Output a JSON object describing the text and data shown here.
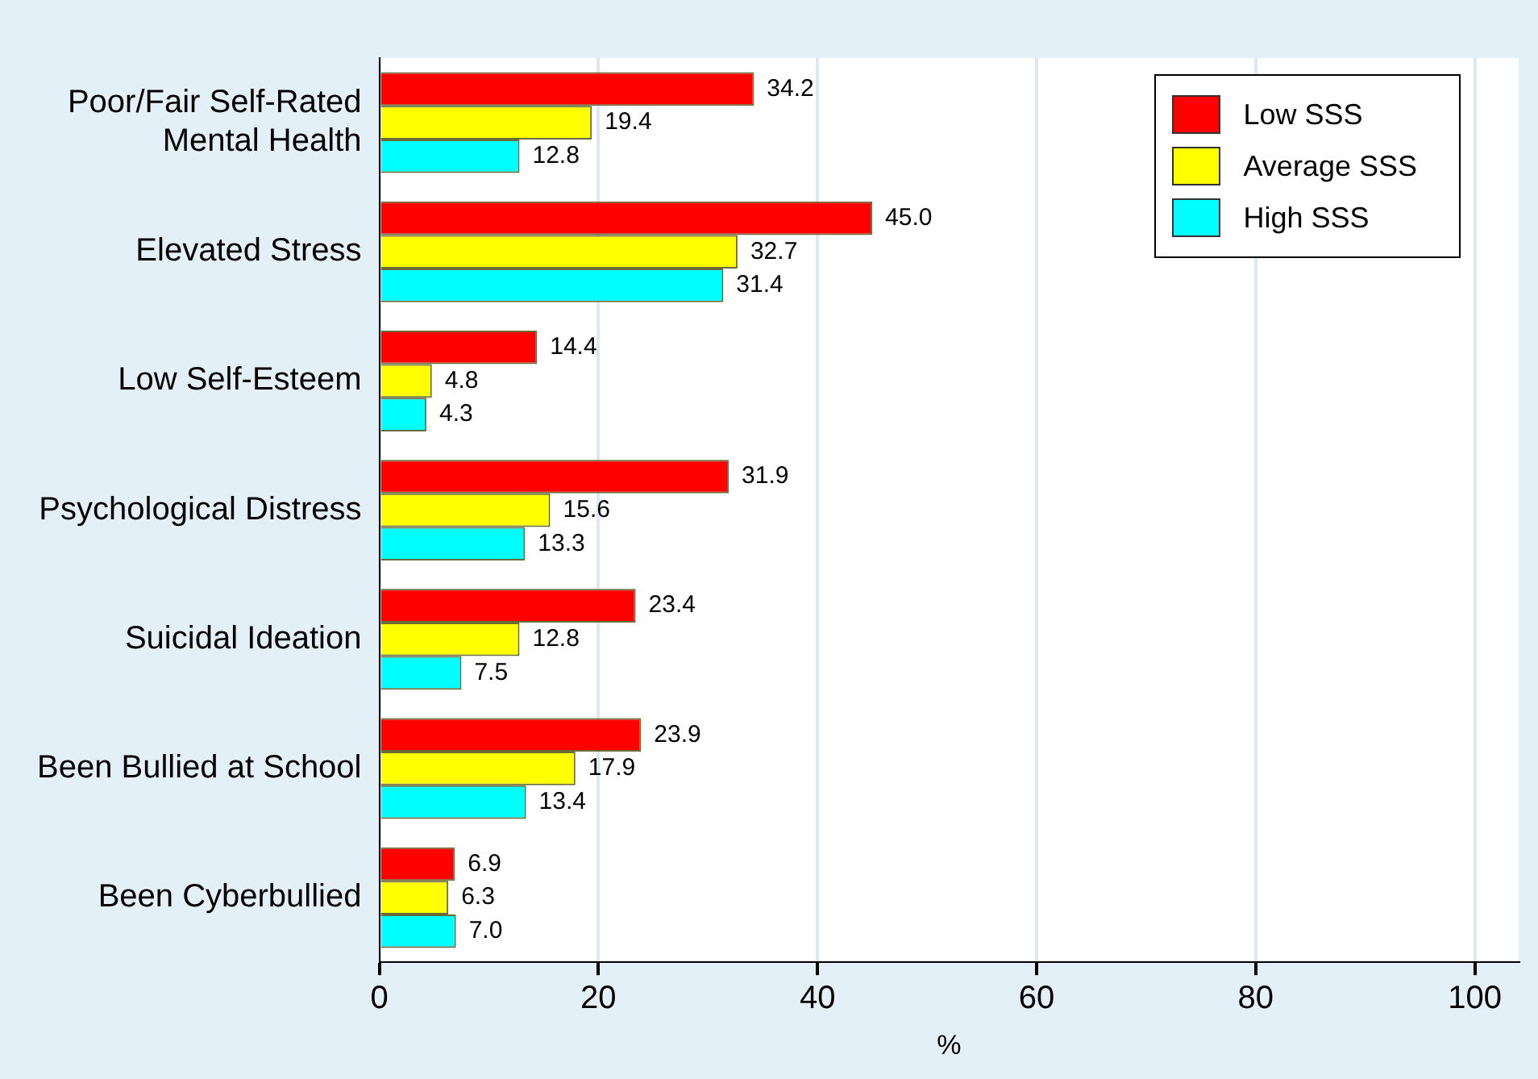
{
  "chart_data": {
    "type": "bar",
    "orientation": "horizontal",
    "xlabel": "%",
    "categories": [
      "Poor/Fair Self-Rated\nMental Health",
      "Elevated Stress",
      "Low Self-Esteem",
      "Psychological Distress",
      "Suicidal Ideation",
      "Been Bullied at School",
      "Been Cyberbullied"
    ],
    "series": [
      {
        "name": "Low SSS",
        "color": "#ff0000",
        "values": [
          34.2,
          45,
          14.4,
          31.9,
          23.4,
          23.9,
          6.9
        ],
        "value_labels": [
          "34.2",
          "45.0",
          "14.4",
          "31.9",
          "23.4",
          "23.9",
          "6.9"
        ]
      },
      {
        "name": "Average SSS",
        "color": "#ffff00",
        "values": [
          19.4,
          32.7,
          4.8,
          15.6,
          12.8,
          17.9,
          6.3
        ],
        "value_labels": [
          "19.4",
          "32.7",
          "4.8",
          "15.6",
          "12.8",
          "17.9",
          "6.3"
        ]
      },
      {
        "name": "High SSS",
        "color": "#00ffff",
        "values": [
          12.8,
          31.4,
          4.3,
          13.3,
          7.5,
          13.4,
          7
        ],
        "value_labels": [
          "12.8",
          "31.4",
          "4.3",
          "13.3",
          "7.5",
          "13.4",
          "7.0"
        ]
      }
    ],
    "xlim": [
      0,
      104
    ],
    "xticks": [
      0,
      20,
      40,
      60,
      80,
      100
    ],
    "grid": "x",
    "legend": "top right"
  }
}
